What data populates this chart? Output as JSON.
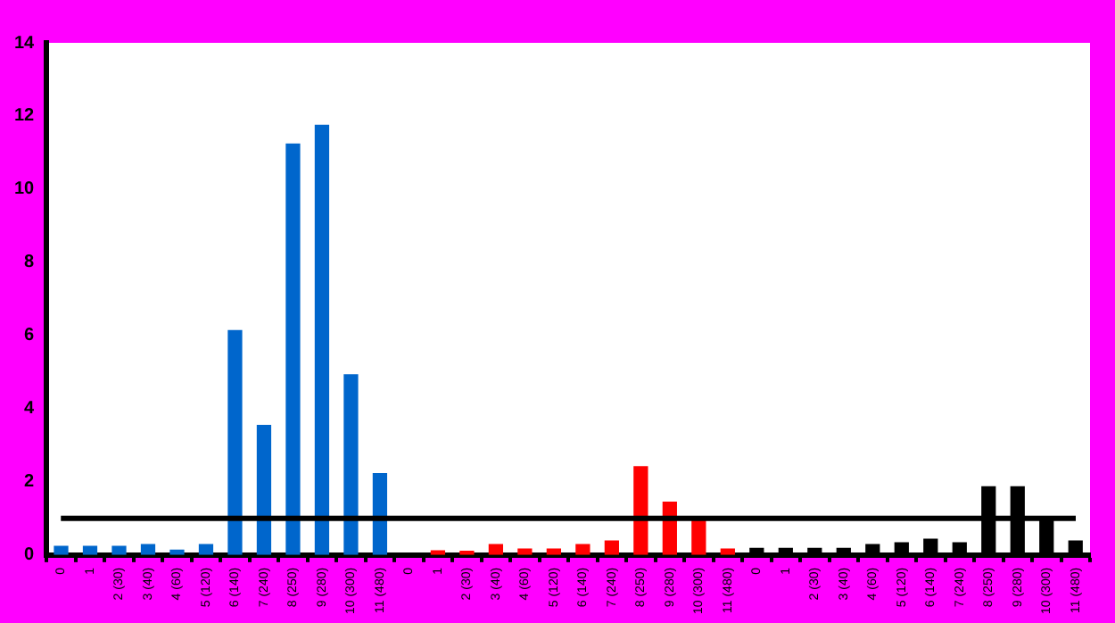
{
  "chart_data": {
    "type": "bar",
    "categories": [
      "0",
      "1",
      "2 (30)",
      "3 (40)",
      "4 (60)",
      "5 (120)",
      "6 (140)",
      "7 (240)",
      "8 (250)",
      "9 (280)",
      "10 (300)",
      "11 (480)",
      "0",
      "1",
      "2 (30)",
      "3 (40)",
      "4 (60)",
      "5 (120)",
      "6 (140)",
      "7 (240)",
      "8 (250)",
      "9 (280)",
      "10 (300)",
      "11 (480)",
      "0",
      "1",
      "2 (30)",
      "3 (40)",
      "4 (60)",
      "5 (120)",
      "6 (140)",
      "7 (240)",
      "8 (250)",
      "9 (280)",
      "10 (300)",
      "11 (480)"
    ],
    "values": [
      0.25,
      0.25,
      0.25,
      0.3,
      0.15,
      0.3,
      6.15,
      3.56,
      11.25,
      11.76,
      4.94,
      2.24,
      0,
      0.13,
      0.12,
      0.3,
      0.18,
      0.18,
      0.3,
      0.4,
      2.43,
      1.46,
      1.0,
      0.18,
      0.2,
      0.2,
      0.2,
      0.2,
      0.3,
      0.35,
      0.45,
      0.35,
      1.88,
      1.88,
      1.0,
      0.4
    ],
    "colors": [
      "#0066cc",
      "#0066cc",
      "#0066cc",
      "#0066cc",
      "#0066cc",
      "#0066cc",
      "#0066cc",
      "#0066cc",
      "#0066cc",
      "#0066cc",
      "#0066cc",
      "#0066cc",
      "#ff0000",
      "#ff0000",
      "#ff0000",
      "#ff0000",
      "#ff0000",
      "#ff0000",
      "#ff0000",
      "#ff0000",
      "#ff0000",
      "#ff0000",
      "#ff0000",
      "#ff0000",
      "#000000",
      "#000000",
      "#000000",
      "#000000",
      "#000000",
      "#000000",
      "#000000",
      "#000000",
      "#000000",
      "#000000",
      "#000000",
      "#000000"
    ],
    "ylim": [
      0,
      14
    ],
    "yticks": [
      0,
      2,
      4,
      6,
      8,
      10,
      12,
      14
    ],
    "ref_lines": [
      {
        "axis": "y",
        "value": 1,
        "color": "#000000"
      }
    ],
    "grid": false,
    "legend": false
  }
}
